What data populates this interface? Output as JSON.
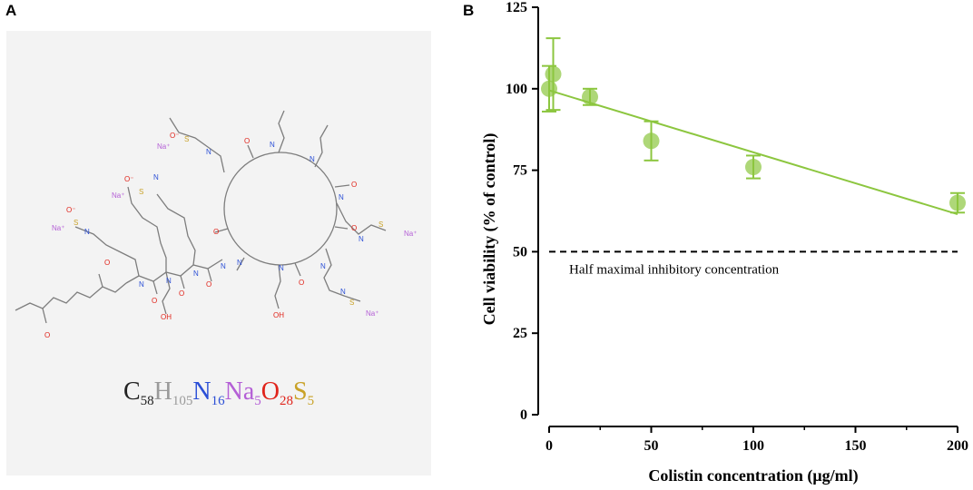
{
  "panels": {
    "a": "A",
    "b": "B"
  },
  "formula": {
    "parts": [
      {
        "el": "C",
        "sub": "58",
        "color": "#222222"
      },
      {
        "el": "H",
        "sub": "105",
        "color": "#9a9a9a"
      },
      {
        "el": "N",
        "sub": "16",
        "color": "#2b4fd6"
      },
      {
        "el": "Na",
        "sub": "5",
        "color": "#b45fd6"
      },
      {
        "el": "O",
        "sub": "28",
        "color": "#e0241b"
      },
      {
        "el": "S",
        "sub": "5",
        "color": "#c9a227"
      }
    ]
  },
  "chart_data": {
    "type": "scatter",
    "title": "",
    "xlabel": "Colistin concentration (μg/ml)",
    "ylabel": "Cell viability (% of  control)",
    "xlim": [
      0,
      200
    ],
    "ylim": [
      0,
      125
    ],
    "xticks": [
      "0",
      "50",
      "100",
      "150",
      "200"
    ],
    "yticks": [
      "0",
      "25",
      "50",
      "75",
      "100",
      "125"
    ],
    "series": [
      {
        "points": [
          {
            "x": 0,
            "y": 100,
            "err": 7
          },
          {
            "x": 2,
            "y": 104.5,
            "err": 11
          },
          {
            "x": 20,
            "y": 97.5,
            "err": 2.5
          },
          {
            "x": 50,
            "y": 84,
            "err": 6
          },
          {
            "x": 100,
            "y": 76,
            "err": 3.5
          },
          {
            "x": 200,
            "y": 65,
            "err": 3
          }
        ],
        "color": "#8cc63f"
      }
    ],
    "fit_line": {
      "x": [
        0,
        200
      ],
      "y": [
        99.5,
        61.5
      ],
      "color": "#8cc63f"
    },
    "reference_line": {
      "y": 50,
      "label": "Half maximal inhibitory concentration",
      "style": "dashed"
    }
  }
}
